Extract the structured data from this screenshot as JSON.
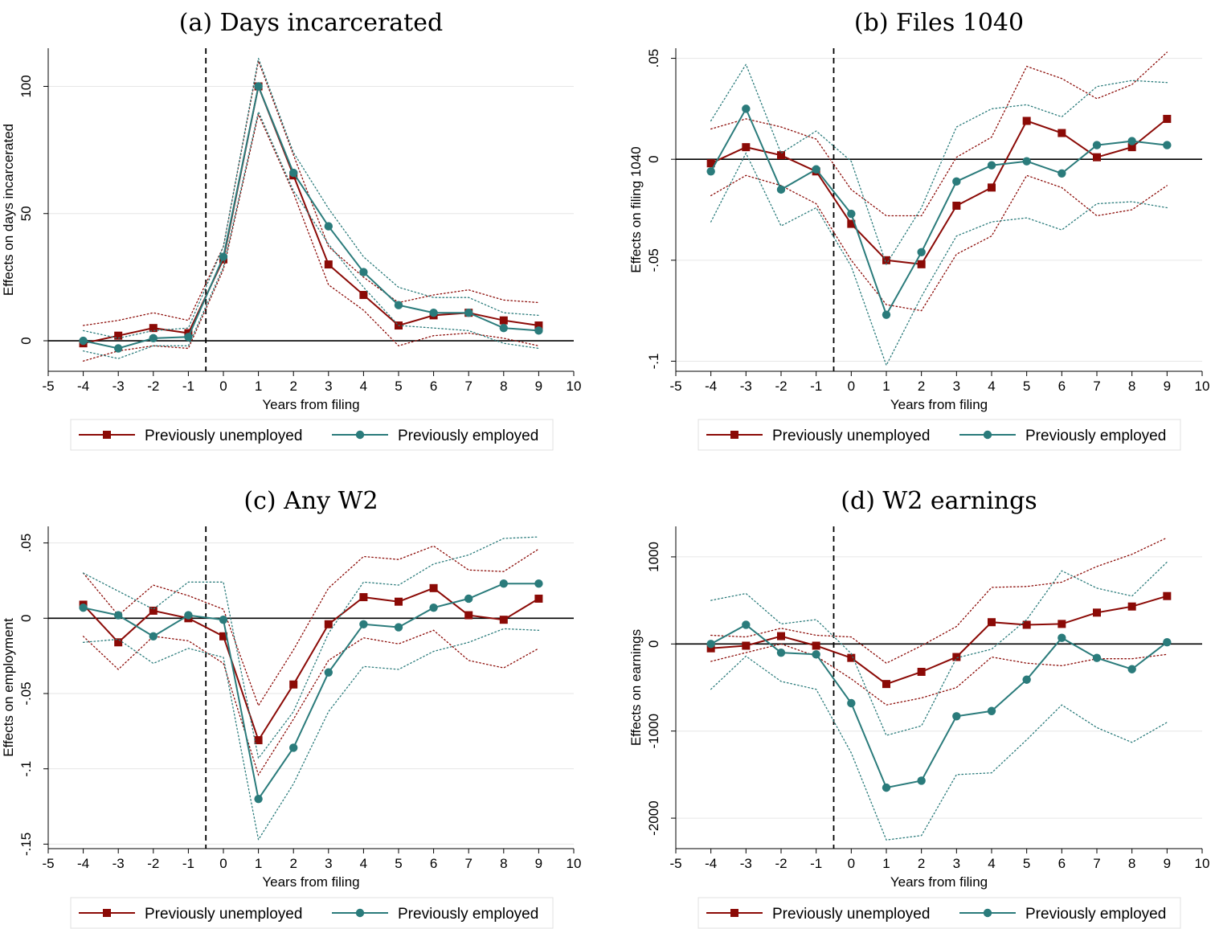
{
  "colors": {
    "unemployed": "#8b0a06",
    "employed": "#2a7b7b",
    "grid": "#e6e6e6",
    "axis": "#000000"
  },
  "legend": {
    "unemployed": "Previously unemployed",
    "employed": "Previously employed"
  },
  "chart_data": [
    {
      "type": "line",
      "title": "(a) Days incarcerated",
      "xlabel": "Years from filing",
      "ylabel": "Effects on days incarcerated",
      "xlim": [
        -5,
        10
      ],
      "ylim": [
        -12,
        115
      ],
      "yticks": [
        0,
        50,
        100
      ],
      "ytick_labels": [
        "0",
        "50",
        "100"
      ],
      "xticks": [
        -5,
        -4,
        -3,
        -2,
        -1,
        0,
        1,
        2,
        3,
        4,
        5,
        6,
        7,
        8,
        9,
        10
      ],
      "event_line": -0.5,
      "legend_position": "bottom",
      "x": [
        -4,
        -3,
        -2,
        -1,
        0,
        1,
        2,
        3,
        4,
        5,
        6,
        7,
        8,
        9
      ],
      "series": [
        {
          "name": "Previously unemployed",
          "values": [
            -1,
            2,
            5,
            3,
            32,
            100,
            65,
            30,
            18,
            6,
            10,
            11,
            8,
            6
          ],
          "ci_low": [
            -8,
            -4,
            -2,
            -3,
            28,
            89,
            58,
            22,
            12,
            -2,
            2,
            3,
            1,
            -2
          ],
          "ci_high": [
            6,
            8,
            11,
            8,
            37,
            110,
            73,
            37,
            25,
            15,
            18,
            20,
            16,
            15
          ]
        },
        {
          "name": "Previously employed",
          "values": [
            0,
            -3,
            1,
            1.5,
            33,
            100,
            66,
            45,
            27,
            14,
            11,
            11,
            5,
            4
          ],
          "ci_low": [
            -4,
            -7,
            -2,
            -2,
            29,
            90,
            59,
            38,
            21,
            6,
            5,
            4,
            -1,
            -3
          ],
          "ci_high": [
            4,
            1,
            4,
            5,
            37,
            111,
            74,
            52,
            33,
            21,
            17,
            17,
            11,
            10
          ]
        }
      ]
    },
    {
      "type": "line",
      "title": "(b) Files 1040",
      "xlabel": "Years from filing",
      "ylabel": "Effects on filing 1040",
      "xlim": [
        -5,
        10
      ],
      "ylim": [
        -0.105,
        0.055
      ],
      "yticks": [
        -0.1,
        -0.05,
        0,
        0.05
      ],
      "ytick_labels": [
        "-.1",
        "-.05",
        "0",
        ".05"
      ],
      "xticks": [
        -5,
        -4,
        -3,
        -2,
        -1,
        0,
        1,
        2,
        3,
        4,
        5,
        6,
        7,
        8,
        9,
        10
      ],
      "event_line": -0.5,
      "legend_position": "bottom",
      "x": [
        -4,
        -3,
        -2,
        -1,
        0,
        1,
        2,
        3,
        4,
        5,
        6,
        7,
        8,
        9
      ],
      "series": [
        {
          "name": "Previously unemployed",
          "values": [
            -0.002,
            0.006,
            0.002,
            -0.006,
            -0.032,
            -0.05,
            -0.052,
            -0.023,
            -0.014,
            0.019,
            0.013,
            0.001,
            0.006,
            0.02
          ],
          "ci_low": [
            -0.018,
            -0.008,
            -0.013,
            -0.022,
            -0.05,
            -0.072,
            -0.075,
            -0.047,
            -0.038,
            -0.008,
            -0.014,
            -0.028,
            -0.025,
            -0.013
          ],
          "ci_high": [
            0.015,
            0.02,
            0.016,
            0.01,
            -0.015,
            -0.028,
            -0.028,
            0.001,
            0.011,
            0.046,
            0.04,
            0.03,
            0.037,
            0.053
          ]
        },
        {
          "name": "Previously employed",
          "values": [
            -0.006,
            0.025,
            -0.015,
            -0.005,
            -0.027,
            -0.077,
            -0.046,
            -0.011,
            -0.003,
            -0.001,
            -0.007,
            0.007,
            0.009,
            0.007
          ],
          "ci_low": [
            -0.031,
            0.003,
            -0.033,
            -0.024,
            -0.053,
            -0.102,
            -0.068,
            -0.038,
            -0.031,
            -0.029,
            -0.035,
            -0.022,
            -0.021,
            -0.024
          ],
          "ci_high": [
            0.019,
            0.047,
            0.003,
            0.014,
            -0.001,
            -0.052,
            -0.024,
            0.016,
            0.025,
            0.027,
            0.021,
            0.036,
            0.039,
            0.038
          ]
        }
      ]
    },
    {
      "type": "line",
      "title": "(c) Any W2",
      "xlabel": "Years from filing",
      "ylabel": "Effects on employment",
      "xlim": [
        -5,
        10
      ],
      "ylim": [
        -0.153,
        0.061
      ],
      "yticks": [
        -0.15,
        -0.1,
        -0.05,
        0,
        0.05
      ],
      "ytick_labels": [
        "-.15",
        "-.1",
        "-.05",
        "0",
        ".05"
      ],
      "xticks": [
        -5,
        -4,
        -3,
        -2,
        -1,
        0,
        1,
        2,
        3,
        4,
        5,
        6,
        7,
        8,
        9,
        10
      ],
      "event_line": -0.5,
      "legend_position": "bottom",
      "x": [
        -4,
        -3,
        -2,
        -1,
        0,
        1,
        2,
        3,
        4,
        5,
        6,
        7,
        8,
        9
      ],
      "series": [
        {
          "name": "Previously unemployed",
          "values": [
            0.009,
            -0.016,
            0.005,
            0,
            -0.012,
            -0.081,
            -0.044,
            -0.004,
            0.014,
            0.011,
            0.02,
            0.002,
            -0.001,
            0.013
          ],
          "ci_low": [
            -0.012,
            -0.034,
            -0.012,
            -0.015,
            -0.03,
            -0.104,
            -0.067,
            -0.028,
            -0.013,
            -0.017,
            -0.008,
            -0.028,
            -0.033,
            -0.02
          ],
          "ci_high": [
            0.03,
            0.002,
            0.022,
            0.015,
            0.006,
            -0.058,
            -0.021,
            0.02,
            0.041,
            0.039,
            0.048,
            0.032,
            0.031,
            0.046
          ]
        },
        {
          "name": "Previously employed",
          "values": [
            0.007,
            0.002,
            -0.012,
            0.002,
            -0.001,
            -0.12,
            -0.086,
            -0.036,
            -0.004,
            -0.006,
            0.007,
            0.013,
            0.023,
            0.023
          ],
          "ci_low": [
            -0.016,
            -0.014,
            -0.03,
            -0.02,
            -0.026,
            -0.147,
            -0.11,
            -0.062,
            -0.032,
            -0.034,
            -0.022,
            -0.016,
            -0.007,
            -0.008
          ],
          "ci_high": [
            0.03,
            0.018,
            0.006,
            0.024,
            0.024,
            -0.093,
            -0.062,
            -0.01,
            0.024,
            0.022,
            0.036,
            0.042,
            0.053,
            0.054
          ]
        }
      ]
    },
    {
      "type": "line",
      "title": "(d) W2 earnings",
      "xlabel": "Years from filing",
      "ylabel": "Effects on earnings",
      "xlim": [
        -5,
        10
      ],
      "ylim": [
        -2350,
        1350
      ],
      "yticks": [
        -2000,
        -1000,
        0,
        1000
      ],
      "ytick_labels": [
        "-2000",
        "-1000",
        "0",
        "1000"
      ],
      "xticks": [
        -5,
        -4,
        -3,
        -2,
        -1,
        0,
        1,
        2,
        3,
        4,
        5,
        6,
        7,
        8,
        9,
        10
      ],
      "event_line": -0.5,
      "legend_position": "bottom",
      "x": [
        -4,
        -3,
        -2,
        -1,
        0,
        1,
        2,
        3,
        4,
        5,
        6,
        7,
        8,
        9
      ],
      "series": [
        {
          "name": "Previously unemployed",
          "values": [
            -50,
            -20,
            90,
            -20,
            -160,
            -460,
            -320,
            -150,
            250,
            220,
            230,
            360,
            430,
            550
          ],
          "ci_low": [
            -200,
            -100,
            0,
            -140,
            -400,
            -700,
            -620,
            -500,
            -150,
            -220,
            -250,
            -170,
            -170,
            -120
          ],
          "ci_high": [
            100,
            80,
            180,
            100,
            80,
            -220,
            -20,
            200,
            650,
            660,
            710,
            890,
            1030,
            1220
          ]
        },
        {
          "name": "Previously employed",
          "values": [
            0,
            220,
            -100,
            -120,
            -680,
            -1650,
            -1570,
            -830,
            -770,
            -410,
            70,
            -160,
            -290,
            20
          ],
          "ci_low": [
            -520,
            -140,
            -430,
            -520,
            -1250,
            -2250,
            -2200,
            -1500,
            -1480,
            -1100,
            -700,
            -960,
            -1130,
            -900
          ],
          "ci_high": [
            500,
            580,
            230,
            280,
            -110,
            -1050,
            -940,
            -160,
            -60,
            280,
            840,
            640,
            550,
            940
          ]
        }
      ]
    }
  ]
}
